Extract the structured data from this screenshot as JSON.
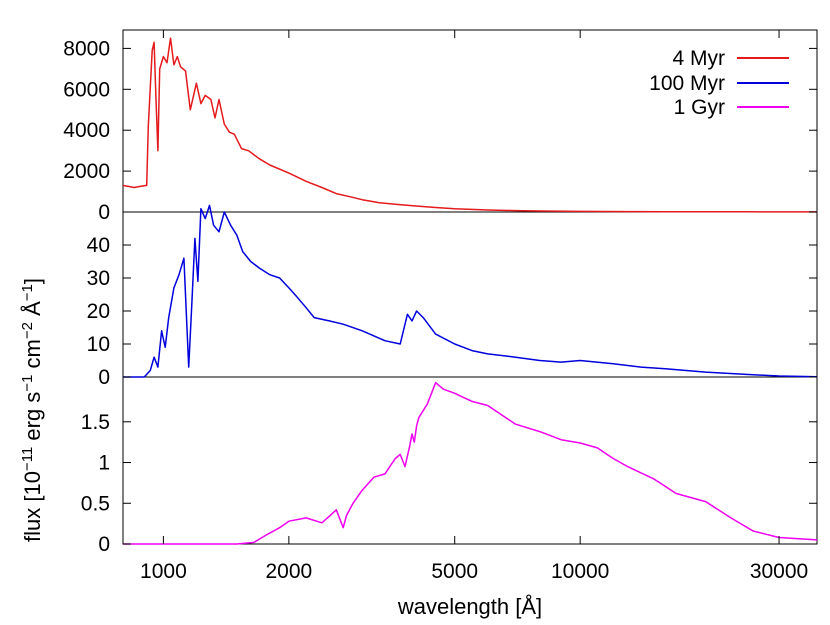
{
  "chart_data": {
    "type": "line",
    "xlabel": "wavelength [Å]",
    "ylabel": "flux [10^-11 erg s^-1 cm^-2 Å^-1]",
    "xscale": "log",
    "xlim": [
      800,
      37000
    ],
    "xticks": [
      {
        "value": 1000,
        "label": "1000"
      },
      {
        "value": 2000,
        "label": "2000"
      },
      {
        "value": 5000,
        "label": "5000"
      },
      {
        "value": 10000,
        "label": "10000"
      },
      {
        "value": 30000,
        "label": "30000"
      }
    ],
    "legend_position": "top-right",
    "colors": {
      "s4myr": "#e41a1c",
      "s100myr": "#0000dd",
      "s1gyr": "#ee00ee"
    },
    "panels": [
      {
        "series_name": "4 Myr",
        "ylim": [
          0,
          8900
        ],
        "yticks": [
          {
            "value": 0,
            "label": "0"
          },
          {
            "value": 2000,
            "label": "2000"
          },
          {
            "value": 4000,
            "label": "4000"
          },
          {
            "value": 6000,
            "label": "6000"
          },
          {
            "value": 8000,
            "label": "8000"
          }
        ],
        "x": [
          800,
          850,
          880,
          912,
          920,
          940,
          950,
          960,
          970,
          980,
          1000,
          1020,
          1040,
          1060,
          1080,
          1100,
          1130,
          1160,
          1200,
          1230,
          1260,
          1300,
          1330,
          1360,
          1400,
          1440,
          1480,
          1540,
          1600,
          1700,
          1800,
          2000,
          2200,
          2400,
          2600,
          2800,
          3000,
          3300,
          3600,
          4000,
          4500,
          5000,
          6000,
          7000,
          8000,
          10000,
          13000,
          16000,
          20000,
          25000,
          30000,
          37000
        ],
        "y": [
          1300,
          1200,
          1250,
          1300,
          4200,
          7900,
          8300,
          5500,
          3000,
          7000,
          7600,
          7300,
          8500,
          7200,
          7600,
          7100,
          6900,
          5000,
          6300,
          5300,
          5700,
          5500,
          4600,
          5500,
          4300,
          3900,
          3800,
          3100,
          3000,
          2600,
          2300,
          1900,
          1500,
          1200,
          900,
          750,
          600,
          450,
          380,
          300,
          220,
          160,
          100,
          70,
          50,
          30,
          20,
          15,
          10,
          8,
          6,
          5
        ]
      },
      {
        "series_name": "100 Myr",
        "ylim": [
          0,
          50
        ],
        "yticks": [
          {
            "value": 0,
            "label": "0"
          },
          {
            "value": 10,
            "label": "10"
          },
          {
            "value": 20,
            "label": "20"
          },
          {
            "value": 30,
            "label": "30"
          },
          {
            "value": 40,
            "label": "40"
          }
        ],
        "x": [
          800,
          900,
          930,
          950,
          970,
          990,
          1010,
          1030,
          1060,
          1090,
          1120,
          1150,
          1170,
          1190,
          1210,
          1230,
          1260,
          1290,
          1320,
          1360,
          1400,
          1450,
          1500,
          1550,
          1620,
          1700,
          1800,
          1900,
          2000,
          2100,
          2200,
          2300,
          2500,
          2700,
          3000,
          3400,
          3700,
          3850,
          3950,
          4050,
          4200,
          4500,
          5000,
          5500,
          6000,
          7000,
          8000,
          9000,
          10000,
          12000,
          14000,
          16000,
          20000,
          25000,
          30000,
          37000
        ],
        "y": [
          0,
          0,
          2,
          6,
          3,
          14,
          9,
          18,
          27,
          31,
          36,
          3,
          22,
          42,
          29,
          51,
          48,
          52,
          46,
          44,
          50,
          46,
          43,
          38,
          35,
          33,
          31,
          30,
          27,
          24,
          21,
          18,
          17,
          16,
          14,
          11,
          10,
          19,
          17,
          20,
          18,
          13,
          10,
          8,
          7,
          6,
          5,
          4.5,
          5,
          4,
          3,
          2.5,
          1.5,
          0.8,
          0.3,
          0.1
        ]
      },
      {
        "series_name": "1 Gyr",
        "ylim": [
          0,
          2.05
        ],
        "yticks": [
          {
            "value": 0,
            "label": "0"
          },
          {
            "value": 0.5,
            "label": "0.5"
          },
          {
            "value": 1,
            "label": "1"
          },
          {
            "value": 1.5,
            "label": "1.5"
          }
        ],
        "x": [
          800,
          1500,
          1650,
          1750,
          1900,
          2000,
          2200,
          2400,
          2500,
          2600,
          2700,
          2750,
          2850,
          3000,
          3200,
          3400,
          3600,
          3700,
          3800,
          3900,
          3950,
          4000,
          4050,
          4100,
          4300,
          4500,
          4700,
          5000,
          5500,
          6000,
          6500,
          7000,
          8000,
          9000,
          10000,
          11000,
          12000,
          13000,
          15000,
          17000,
          20000,
          23000,
          26000,
          30000,
          37000
        ],
        "y": [
          0,
          0,
          0.02,
          0.1,
          0.2,
          0.28,
          0.32,
          0.26,
          0.34,
          0.42,
          0.2,
          0.35,
          0.5,
          0.66,
          0.82,
          0.86,
          1.05,
          1.1,
          0.95,
          1.2,
          1.35,
          1.25,
          1.45,
          1.55,
          1.72,
          1.98,
          1.9,
          1.85,
          1.75,
          1.7,
          1.58,
          1.47,
          1.38,
          1.28,
          1.24,
          1.18,
          1.05,
          0.95,
          0.8,
          0.62,
          0.52,
          0.32,
          0.16,
          0.08,
          0.05
        ]
      }
    ]
  }
}
